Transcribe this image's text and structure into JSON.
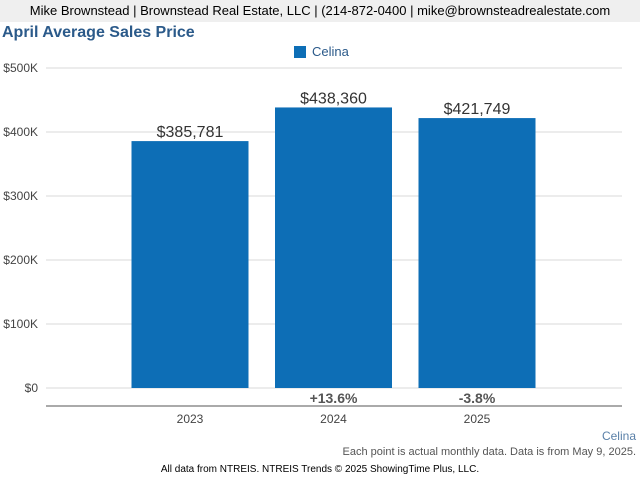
{
  "header": {
    "contact_line": "Mike Brownstead | Brownstead Real Estate, LLC | (214-872-0400 | mike@brownsteadrealestate.com"
  },
  "chart_data": {
    "type": "bar",
    "title": "April Average Sales Price",
    "categories": [
      "2023",
      "2024",
      "2025"
    ],
    "series": [
      {
        "name": "Celina",
        "values": [
          385781,
          438360,
          421749
        ],
        "color": "#0d6eb6"
      }
    ],
    "value_labels": [
      "$385,781",
      "$438,360",
      "$421,749"
    ],
    "change_labels": [
      "",
      "+13.6%",
      "-3.8%"
    ],
    "ylim": [
      0,
      500000
    ],
    "yticks": [
      0,
      100000,
      200000,
      300000,
      400000,
      500000
    ],
    "ytick_labels": [
      "$0",
      "$100K",
      "$200K",
      "$300K",
      "$400K",
      "$500K"
    ],
    "grid": true,
    "legend": "top-center"
  },
  "footer": {
    "area_label": "Celina",
    "note": "Each point is actual monthly data. Data is from May 9, 2025.",
    "source": "All data from NTREIS. NTREIS Trends © 2025 ShowingTime Plus, LLC."
  }
}
